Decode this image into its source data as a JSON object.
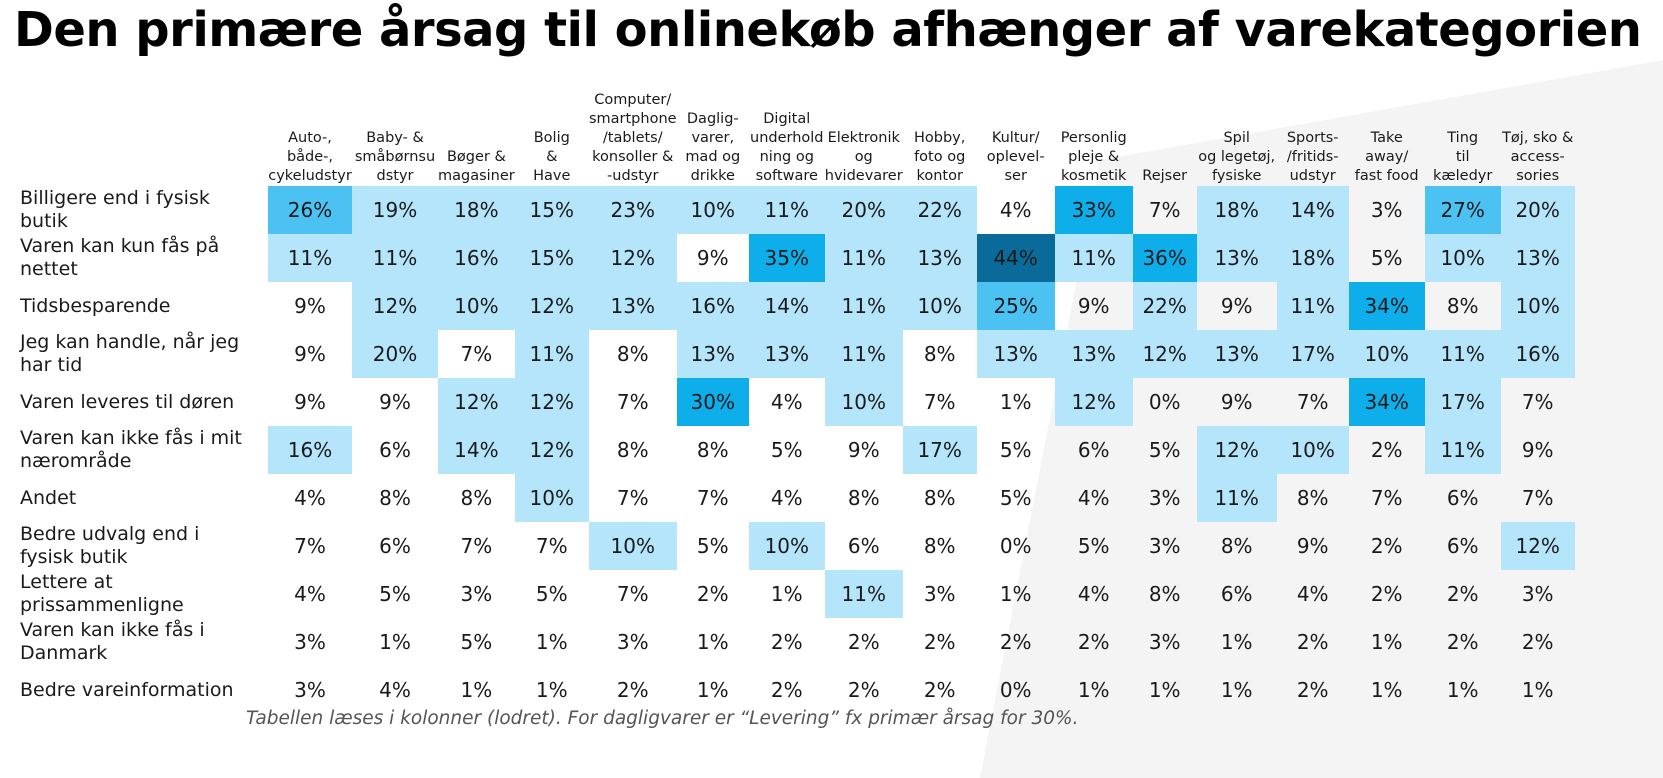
{
  "page": {
    "title": "Den primære årsag til onlinekøb afhænger af varekategorien",
    "note": "Tabellen læses i kolonner (lodret). For dagligvarer er “Levering” fx primær årsag for 30%."
  },
  "chart_data": {
    "type": "heatmap",
    "title": "Den primære årsag til onlinekøb afhænger af varekategorien",
    "unit": "%",
    "columns": [
      "Auto-,\nbåde-,\ncykeludstyr",
      "Baby- &\nsmåbørnsu\ndstyr",
      "Bøger &\nmagasiner",
      "Bolig\n&\nHave",
      "Computer/\nsmartphone\n/tablets/\nkonsoller &\n-udstyr",
      "Daglig-\nvarer,\nmad og\ndrikke",
      "Digital\nunderhold\nning og\nsoftware",
      "Elektronik\nog\nhvidevarer",
      "Hobby,\nfoto og\nkontor",
      "Kultur/\noplevel-\nser",
      "Personlig\npleje &\nkosmetik",
      "Rejser",
      "Spil\nog legetøj,\nfysiske",
      "Sports-\n/fritids-\nudstyr",
      "Take\naway/\nfast food",
      "Ting\ntil kæledyr",
      "Tøj, sko &\naccess-\nsories"
    ],
    "rows": [
      "Billigere end i fysisk\nbutik",
      "Varen kan kun fås på\nnettet",
      "Tidsbesparende",
      "Jeg kan handle, når jeg\nhar tid",
      "Varen leveres til døren",
      "Varen kan ikke fås i mit\nnærområde",
      "Andet",
      "Bedre udvalg end i\nfysisk butik",
      "Lettere at\nprissammenligne",
      "Varen kan ikke fås i\nDanmark",
      "Bedre vareinformation"
    ],
    "values": [
      [
        26,
        19,
        18,
        15,
        23,
        10,
        11,
        20,
        22,
        4,
        33,
        7,
        18,
        14,
        3,
        27,
        20
      ],
      [
        11,
        11,
        16,
        15,
        12,
        9,
        35,
        11,
        13,
        44,
        11,
        36,
        13,
        18,
        5,
        10,
        13
      ],
      [
        9,
        12,
        10,
        12,
        13,
        16,
        14,
        11,
        10,
        25,
        9,
        22,
        9,
        11,
        34,
        8,
        10
      ],
      [
        9,
        20,
        7,
        11,
        8,
        13,
        13,
        11,
        8,
        13,
        13,
        12,
        13,
        17,
        10,
        11,
        16
      ],
      [
        9,
        9,
        12,
        12,
        7,
        30,
        4,
        10,
        7,
        1,
        12,
        0,
        9,
        7,
        34,
        17,
        7
      ],
      [
        16,
        6,
        14,
        12,
        8,
        8,
        5,
        9,
        17,
        5,
        6,
        5,
        12,
        10,
        2,
        11,
        9
      ],
      [
        4,
        8,
        8,
        10,
        7,
        7,
        4,
        8,
        8,
        5,
        4,
        3,
        11,
        8,
        7,
        6,
        7
      ],
      [
        7,
        6,
        7,
        7,
        10,
        5,
        10,
        6,
        8,
        0,
        5,
        3,
        8,
        9,
        2,
        6,
        12
      ],
      [
        4,
        5,
        3,
        5,
        7,
        2,
        1,
        11,
        3,
        1,
        4,
        8,
        6,
        4,
        2,
        2,
        3
      ],
      [
        3,
        1,
        5,
        1,
        3,
        1,
        2,
        2,
        2,
        2,
        2,
        3,
        1,
        2,
        1,
        2,
        2
      ],
      [
        3,
        4,
        1,
        1,
        2,
        1,
        2,
        2,
        2,
        0,
        1,
        1,
        1,
        2,
        1,
        1,
        1
      ]
    ],
    "colors": {
      "highest": "#0a6a9a",
      "very_high": "#0daeea",
      "high": "#4cc2f3",
      "medium": "#b4e5fb",
      "low": "#dff3fd",
      "none": "#ffffff"
    }
  }
}
